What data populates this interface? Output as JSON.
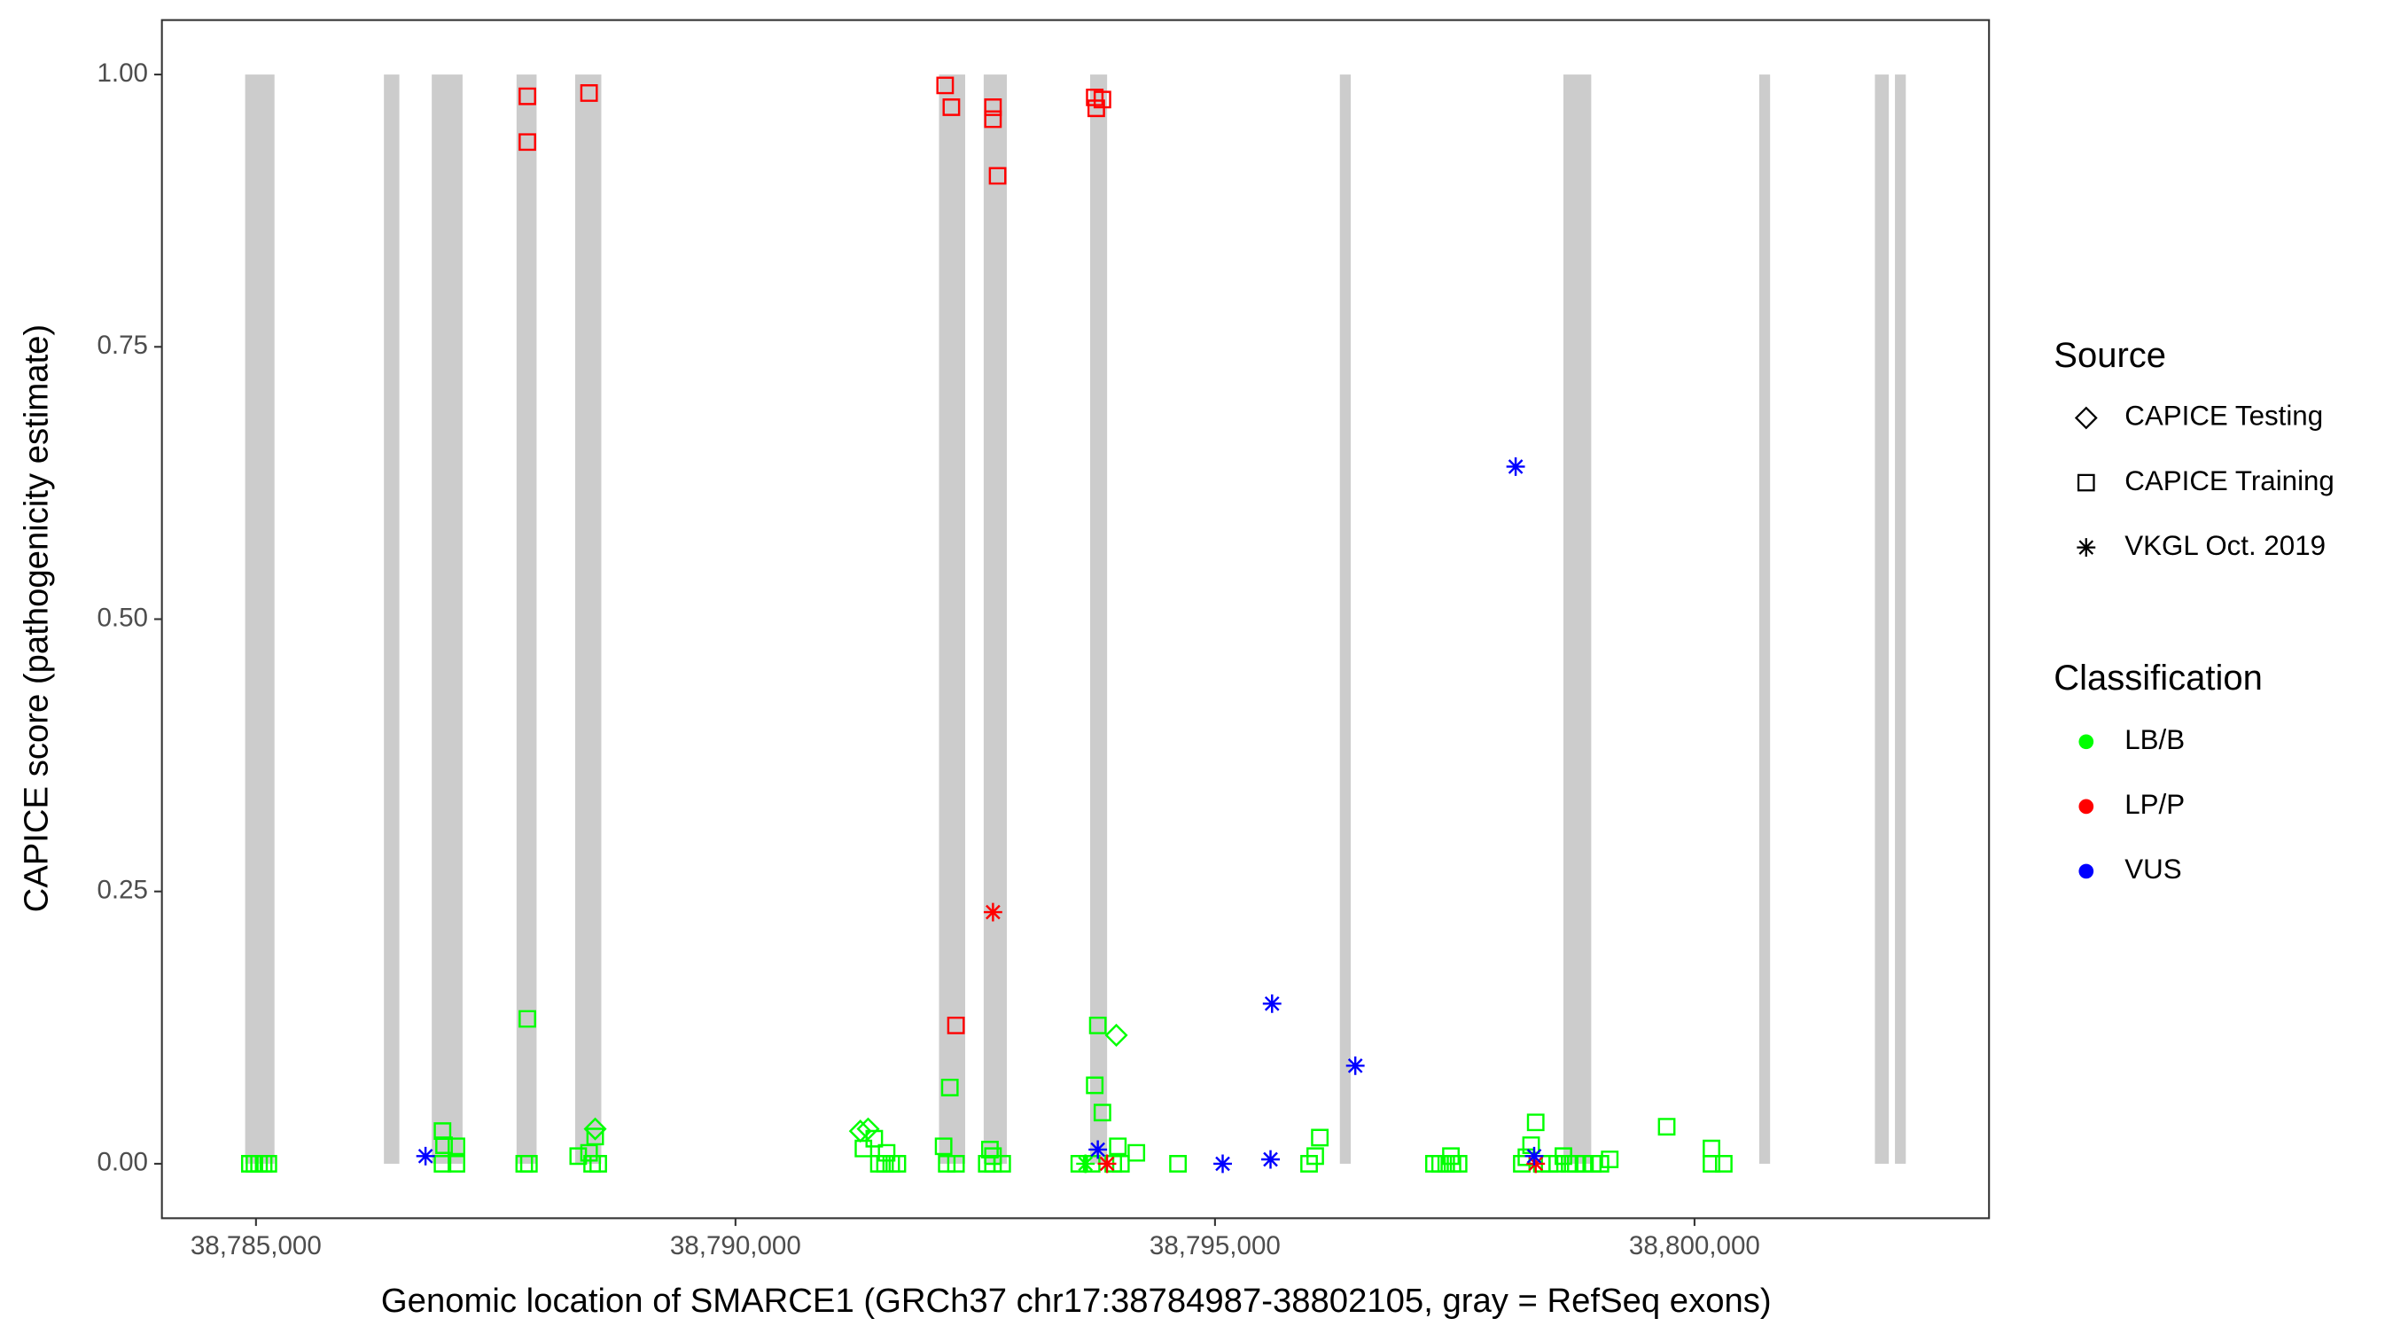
{
  "chart_data": {
    "type": "scatter",
    "x_label": "Genomic location of SMARCE1 (GRCh37 chr17:38784987-38802105, gray = RefSeq exons)",
    "y_label": "CAPICE score (pathogenicity estimate)",
    "xlim": [
      38784019,
      38803071
    ],
    "ylim": [
      -0.05,
      1.05
    ],
    "xticks": [
      {
        "value": 38785000,
        "label": "38,785,000"
      },
      {
        "value": 38790000,
        "label": "38,790,000"
      },
      {
        "value": 38795000,
        "label": "38,795,000"
      },
      {
        "value": 38800000,
        "label": "38,800,000"
      }
    ],
    "yticks": [
      {
        "value": 0,
        "label": "0.00"
      },
      0.25,
      {
        "value": 0.5,
        "label": "0.50"
      },
      0.75,
      {
        "value": 1,
        "label": "1.00"
      }
    ],
    "grid": false,
    "exon_color": "#cccccc",
    "exon_y": [
      0,
      1
    ],
    "exons": [
      [
        38784887,
        38785193
      ],
      [
        38786334,
        38786495
      ],
      [
        38786833,
        38787154
      ],
      [
        38787717,
        38787926
      ],
      [
        38788328,
        38788601
      ],
      [
        38792122,
        38792395
      ],
      [
        38792588,
        38792830
      ],
      [
        38793698,
        38793875
      ],
      [
        38796302,
        38796415
      ],
      [
        38798633,
        38798923
      ],
      [
        38800675,
        38800788
      ],
      [
        38801881,
        38802026
      ],
      [
        38802090,
        38802203
      ]
    ],
    "legend_position": "right",
    "shape_legend": {
      "title": "Source",
      "items": [
        {
          "name": "CAPICE Testing",
          "shape": "diamond"
        },
        {
          "name": "CAPICE Training",
          "shape": "square"
        },
        {
          "name": "VKGL Oct. 2019",
          "shape": "asterisk"
        }
      ]
    },
    "color_legend": {
      "title": "Classification",
      "items": [
        {
          "name": "LB/B",
          "color": "#00ff00"
        },
        {
          "name": "LP/P",
          "color": "#ff0000"
        },
        {
          "name": "VUS",
          "color": "#0000ff"
        }
      ]
    },
    "series": [
      {
        "source": "CAPICE Training",
        "classification": "LB/B",
        "x": [
          38784936,
          38784984,
          38785032,
          38785080,
          38785129,
          38786945,
          38786961,
          38786945,
          38787090,
          38787090,
          38787830,
          38787797,
          38787846,
          38788537,
          38788473,
          38788505,
          38788569,
          38788360,
          38791334,
          38791447,
          38791576,
          38791495,
          38791559,
          38791624,
          38791688,
          38792235,
          38792170,
          38792203,
          38792299,
          38792653,
          38792685,
          38792620,
          38792685,
          38792781,
          38793778,
          38793746,
          38793826,
          38793987,
          38794180,
          38793585,
          38793714,
          38793939,
          38794019,
          38794614,
          38795981,
          38796045,
          38796093,
          38797283,
          38797347,
          38797411,
          38797476,
          38797540,
          38797460,
          38798199,
          38798247,
          38798296,
          38798344,
          38798408,
          38798489,
          38798569,
          38798633,
          38798698,
          38798762,
          38798842,
          38798939,
          38799019,
          38799116,
          38799710,
          38800177,
          38800177,
          38800305
        ],
        "values": [
          0,
          0,
          0,
          0,
          0,
          0.03,
          0.017,
          0,
          0.016,
          0,
          0.133,
          0,
          0,
          0.025,
          0.01,
          0,
          0,
          0.007,
          0.014,
          0.023,
          0.01,
          0,
          0,
          0,
          0,
          0.07,
          0.016,
          0,
          0,
          0.013,
          0.007,
          0,
          0,
          0,
          0.127,
          0.072,
          0.047,
          0.016,
          0.01,
          0,
          0,
          0,
          0,
          0,
          0,
          0.007,
          0.024,
          0,
          0,
          0,
          0,
          0,
          0.007,
          0,
          0.006,
          0.017,
          0.038,
          0,
          0,
          0,
          0.007,
          0,
          0,
          0,
          0,
          0,
          0.004,
          0.034,
          0.014,
          0,
          0
        ]
      },
      {
        "source": "CAPICE Testing",
        "classification": "LB/B",
        "x": [
          38788537,
          38791383,
          38791302,
          38793971
        ],
        "values": [
          0.032,
          0.032,
          0.03,
          0.118
        ]
      },
      {
        "source": "VKGL Oct. 2019",
        "classification": "LB/B",
        "x": [
          38793649
        ],
        "values": [
          0
        ]
      },
      {
        "source": "CAPICE Training",
        "classification": "LP/P",
        "x": [
          38787830,
          38787830,
          38788473,
          38792186,
          38792251,
          38792299,
          38792685,
          38792685,
          38792733,
          38793746,
          38793762,
          38793826
        ],
        "values": [
          0.98,
          0.938,
          0.983,
          0.99,
          0.97,
          0.127,
          0.97,
          0.959,
          0.907,
          0.979,
          0.969,
          0.977
        ]
      },
      {
        "source": "VKGL Oct. 2019",
        "classification": "LP/P",
        "x": [
          38792685,
          38793874,
          38798344
        ],
        "values": [
          0.231,
          0,
          0
        ]
      },
      {
        "source": "VKGL Oct. 2019",
        "classification": "VUS",
        "x": [
          38786768,
          38793778,
          38795080,
          38795595,
          38795579,
          38796463,
          38798135,
          38798328
        ],
        "values": [
          0.007,
          0.013,
          0,
          0.147,
          0.004,
          0.09,
          0.64,
          0.007
        ]
      }
    ]
  }
}
